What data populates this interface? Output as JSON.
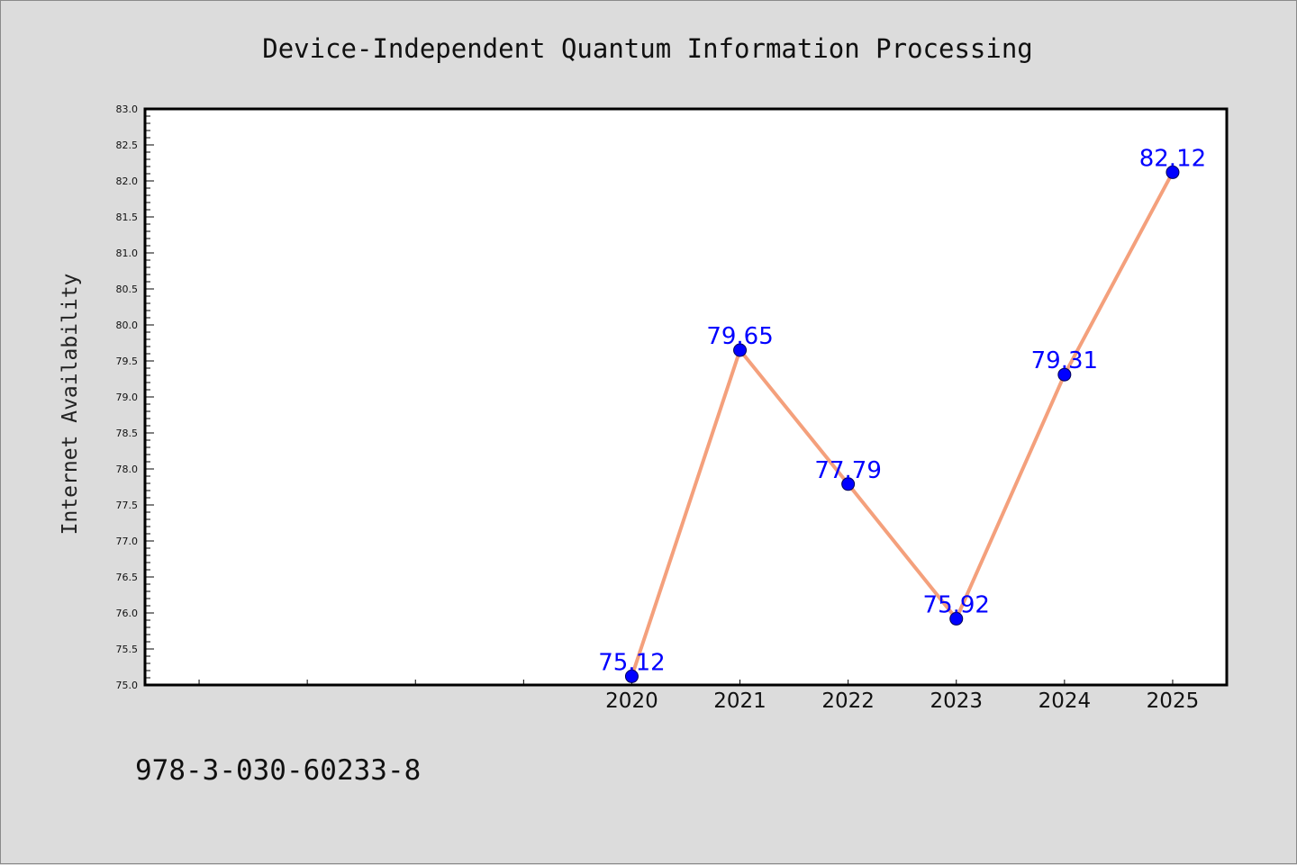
{
  "footer": "978-3-030-60233-8",
  "colors": {
    "background": "#dcdcdc",
    "plot_area": "#ffffff",
    "line": "#f4a07c",
    "marker": "#0000ff",
    "data_label": "#0000ff"
  },
  "chart_data": {
    "type": "line",
    "title": "Device-Independent Quantum Information Processing",
    "xlabel": "",
    "ylabel": "Internet Availability",
    "x": [
      2020,
      2021,
      2022,
      2023,
      2024,
      2025
    ],
    "xlim": [
      2015.5,
      2025.5
    ],
    "ylim": [
      75.0,
      83.0
    ],
    "ytick_step": 0.5,
    "yticks": [
      "75.0",
      "75.5",
      "76.0",
      "76.5",
      "77.0",
      "77.5",
      "78.0",
      "78.5",
      "79.0",
      "79.5",
      "80.0",
      "80.5",
      "81.0",
      "81.5",
      "82.0",
      "82.5",
      "83.0"
    ],
    "xticks": [
      "2020",
      "2021",
      "2022",
      "2023",
      "2024",
      "2025"
    ],
    "series": [
      {
        "values": [
          75.12,
          79.65,
          77.79,
          75.92,
          79.31,
          82.12
        ],
        "labels": [
          "75.12",
          "79.65",
          "77.79",
          "75.92",
          "79.31",
          "82.12"
        ]
      }
    ],
    "grid": false,
    "legend": "none",
    "markers": true
  }
}
